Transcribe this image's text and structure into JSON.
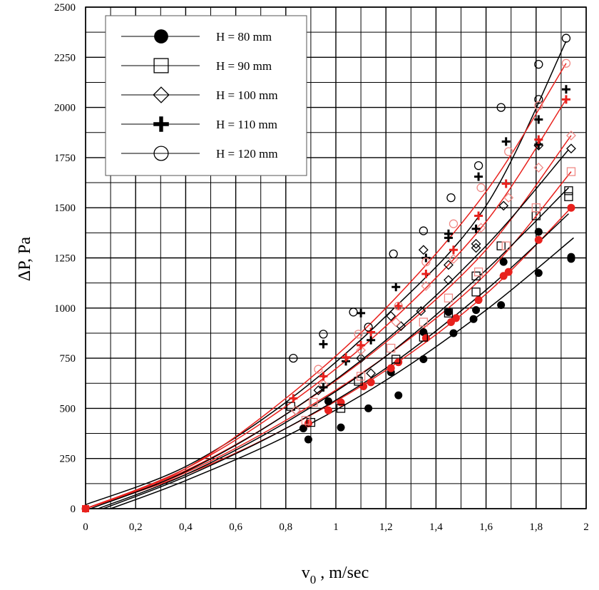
{
  "chart_data": {
    "type": "scatter",
    "title": "",
    "xlabel_main": "v",
    "xlabel_sub": "0",
    "xlabel_rest": " , m/sec",
    "ylabel": "ΔP, Pa",
    "xlim": [
      0,
      2
    ],
    "ylim": [
      0,
      2500
    ],
    "x_ticks": [
      0,
      0.2,
      0.4,
      0.6,
      0.8,
      1,
      1.2,
      1.4,
      1.6,
      1.8,
      2
    ],
    "x_tick_labels": [
      "0",
      "0,2",
      "0,4",
      "0,6",
      "0,8",
      "1",
      "1,2",
      "1,4",
      "1,6",
      "1,8",
      "2"
    ],
    "y_ticks": [
      0,
      250,
      500,
      750,
      1000,
      1250,
      1500,
      1750,
      2000,
      2250,
      2500
    ],
    "y_tick_labels": [
      "0",
      "250",
      "500",
      "750",
      "1000",
      "1250",
      "1500",
      "1750",
      "2000",
      "2250",
      "2500"
    ],
    "grid": true,
    "legend_position": "top-left",
    "colors": {
      "experimental": "#000000",
      "model": "#e8211d",
      "model_light": "#f08a86"
    },
    "series": [
      {
        "name": "H = 80 mm",
        "marker": "filled-circle",
        "points": [
          [
            0.87,
            400
          ],
          [
            0.89,
            345
          ],
          [
            0.97,
            535
          ],
          [
            1.02,
            405
          ],
          [
            1.13,
            500
          ],
          [
            1.22,
            680
          ],
          [
            1.25,
            565
          ],
          [
            1.35,
            745
          ],
          [
            1.35,
            880
          ],
          [
            1.45,
            980
          ],
          [
            1.47,
            875
          ],
          [
            1.55,
            945
          ],
          [
            1.56,
            990
          ],
          [
            1.66,
            1015
          ],
          [
            1.67,
            1230
          ],
          [
            1.81,
            1175
          ],
          [
            1.81,
            1380
          ],
          [
            1.94,
            1245
          ],
          [
            1.94,
            1255
          ]
        ],
        "model_points": [
          [
            0,
            0
          ],
          [
            0.89,
            425
          ],
          [
            0.97,
            490
          ],
          [
            1.02,
            530
          ],
          [
            1.11,
            610
          ],
          [
            1.14,
            630
          ],
          [
            1.22,
            700
          ],
          [
            1.25,
            730
          ],
          [
            1.36,
            850
          ],
          [
            1.46,
            930
          ],
          [
            1.48,
            950
          ],
          [
            1.57,
            1040
          ],
          [
            1.67,
            1160
          ],
          [
            1.69,
            1180
          ],
          [
            1.81,
            1340
          ],
          [
            1.94,
            1500
          ]
        ],
        "exp_curve": [
          [
            0.1,
            0
          ],
          [
            0.4,
            140
          ],
          [
            0.8,
            360
          ],
          [
            1.2,
            640
          ],
          [
            1.6,
            990
          ],
          [
            1.95,
            1350
          ]
        ],
        "model_curve": [
          [
            0,
            0
          ],
          [
            0.4,
            170
          ],
          [
            0.8,
            400
          ],
          [
            1.2,
            690
          ],
          [
            1.6,
            1070
          ],
          [
            1.94,
            1500
          ]
        ]
      },
      {
        "name": "H = 90 mm",
        "marker": "open-square",
        "points": [
          [
            0.82,
            510
          ],
          [
            0.9,
            430
          ],
          [
            1.02,
            500
          ],
          [
            1.09,
            635
          ],
          [
            1.24,
            745
          ],
          [
            1.35,
            855
          ],
          [
            1.45,
            975
          ],
          [
            1.56,
            1080
          ],
          [
            1.56,
            1160
          ],
          [
            1.66,
            1310
          ],
          [
            1.8,
            1460
          ],
          [
            1.93,
            1555
          ],
          [
            1.93,
            1585
          ]
        ],
        "model_points": [
          [
            0.88,
            440
          ],
          [
            0.91,
            530
          ],
          [
            1.1,
            660
          ],
          [
            1.22,
            800
          ],
          [
            1.35,
            930
          ],
          [
            1.45,
            1050
          ],
          [
            1.57,
            1180
          ],
          [
            1.68,
            1310
          ],
          [
            1.8,
            1500
          ],
          [
            1.94,
            1680
          ]
        ],
        "exp_curve": [
          [
            0.07,
            0
          ],
          [
            0.4,
            160
          ],
          [
            0.8,
            400
          ],
          [
            1.2,
            700
          ],
          [
            1.6,
            1090
          ],
          [
            1.93,
            1470
          ]
        ],
        "model_curve": [
          [
            0,
            0
          ],
          [
            0.4,
            180
          ],
          [
            0.8,
            440
          ],
          [
            1.2,
            760
          ],
          [
            1.6,
            1170
          ],
          [
            1.94,
            1680
          ]
        ]
      },
      {
        "name": "H = 100 mm",
        "marker": "open-diamond",
        "points": [
          [
            0.84,
            490
          ],
          [
            0.93,
            590
          ],
          [
            1.1,
            750
          ],
          [
            1.14,
            675
          ],
          [
            1.22,
            960
          ],
          [
            1.26,
            910
          ],
          [
            1.34,
            985
          ],
          [
            1.35,
            1290
          ],
          [
            1.45,
            1140
          ],
          [
            1.45,
            1215
          ],
          [
            1.56,
            1300
          ],
          [
            1.56,
            1320
          ],
          [
            1.67,
            1510
          ],
          [
            1.81,
            1810
          ],
          [
            1.94,
            1795
          ]
        ],
        "model_points": [
          [
            0.84,
            490
          ],
          [
            0.95,
            620
          ],
          [
            1.1,
            790
          ],
          [
            1.24,
            930
          ],
          [
            1.36,
            1110
          ],
          [
            1.47,
            1245
          ],
          [
            1.58,
            1400
          ],
          [
            1.69,
            1550
          ],
          [
            1.81,
            1700
          ],
          [
            1.94,
            1860
          ]
        ],
        "exp_curve": [
          [
            0.05,
            0
          ],
          [
            0.4,
            170
          ],
          [
            0.8,
            430
          ],
          [
            1.2,
            760
          ],
          [
            1.6,
            1190
          ],
          [
            1.93,
            1600
          ]
        ],
        "model_curve": [
          [
            0,
            0
          ],
          [
            0.4,
            190
          ],
          [
            0.8,
            470
          ],
          [
            1.2,
            830
          ],
          [
            1.6,
            1290
          ],
          [
            1.94,
            1860
          ]
        ]
      },
      {
        "name": "H = 110 mm",
        "marker": "plus",
        "points": [
          [
            0.95,
            820
          ],
          [
            0.95,
            605
          ],
          [
            1.04,
            735
          ],
          [
            1.1,
            975
          ],
          [
            1.14,
            840
          ],
          [
            1.24,
            1105
          ],
          [
            1.36,
            1250
          ],
          [
            1.45,
            1350
          ],
          [
            1.45,
            1370
          ],
          [
            1.56,
            1395
          ],
          [
            1.57,
            1655
          ],
          [
            1.68,
            1830
          ],
          [
            1.81,
            1940
          ],
          [
            1.81,
            1815
          ],
          [
            1.92,
            2090
          ]
        ],
        "model_points": [
          [
            0.83,
            550
          ],
          [
            0.95,
            660
          ],
          [
            1.04,
            755
          ],
          [
            1.1,
            815
          ],
          [
            1.14,
            880
          ],
          [
            1.25,
            1010
          ],
          [
            1.36,
            1170
          ],
          [
            1.47,
            1290
          ],
          [
            1.57,
            1460
          ],
          [
            1.68,
            1620
          ],
          [
            1.81,
            1840
          ],
          [
            1.92,
            2040
          ]
        ],
        "exp_curve": [
          [
            0.02,
            0
          ],
          [
            0.4,
            185
          ],
          [
            0.8,
            470
          ],
          [
            1.2,
            840
          ],
          [
            1.6,
            1310
          ],
          [
            1.93,
            1790
          ]
        ],
        "model_curve": [
          [
            0,
            0
          ],
          [
            0.4,
            200
          ],
          [
            0.8,
            510
          ],
          [
            1.2,
            910
          ],
          [
            1.6,
            1430
          ],
          [
            1.92,
            2040
          ]
        ]
      },
      {
        "name": "H = 120 mm",
        "marker": "open-circle",
        "points": [
          [
            0.83,
            750
          ],
          [
            0.95,
            870
          ],
          [
            1.07,
            980
          ],
          [
            1.13,
            905
          ],
          [
            1.23,
            1270
          ],
          [
            1.35,
            1385
          ],
          [
            1.46,
            1550
          ],
          [
            1.57,
            1710
          ],
          [
            1.66,
            2000
          ],
          [
            1.81,
            2215
          ],
          [
            1.81,
            2040
          ],
          [
            1.92,
            2345
          ]
        ],
        "model_points": [
          [
            0.93,
            695
          ],
          [
            1.09,
            870
          ],
          [
            1.25,
            1010
          ],
          [
            1.36,
            1230
          ],
          [
            1.47,
            1420
          ],
          [
            1.58,
            1600
          ],
          [
            1.69,
            1780
          ],
          [
            1.81,
            2010
          ],
          [
            1.92,
            2220
          ]
        ],
        "exp_curve": [
          [
            0,
            20
          ],
          [
            0.4,
            210
          ],
          [
            0.8,
            530
          ],
          [
            1.2,
            960
          ],
          [
            1.6,
            1510
          ],
          [
            1.92,
            2330
          ]
        ],
        "model_curve": [
          [
            0,
            0
          ],
          [
            0.4,
            200
          ],
          [
            0.8,
            550
          ],
          [
            1.2,
            1000
          ],
          [
            1.6,
            1580
          ],
          [
            1.92,
            2220
          ]
        ]
      }
    ]
  }
}
